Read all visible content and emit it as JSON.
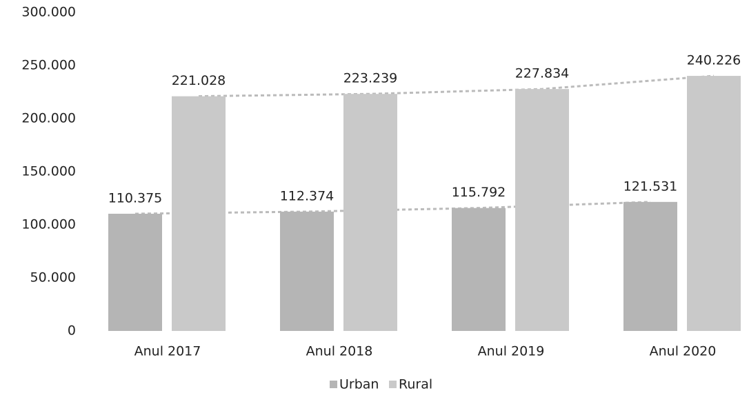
{
  "chart_data": {
    "type": "bar",
    "categories": [
      "Anul 2017",
      "Anul 2018",
      "Anul 2019",
      "Anul 2020"
    ],
    "series": [
      {
        "name": "Urban",
        "color": "#b5b5b5",
        "values": [
          110375,
          112374,
          115792,
          121531
        ],
        "value_labels": [
          "110.375",
          "112.374",
          "115.792",
          "121.531"
        ]
      },
      {
        "name": "Rural",
        "color": "#c9c9c9",
        "values": [
          221028,
          223239,
          227834,
          240226
        ],
        "value_labels": [
          "221.028",
          "223.239",
          "227.834",
          "240.226"
        ]
      }
    ],
    "ylim": [
      0,
      300000
    ],
    "yticks": [
      0,
      {
        "value": 50000,
        "label": "50.000"
      },
      {
        "value": 100000,
        "label": "100.000"
      },
      {
        "value": 150000,
        "label": "150.000"
      },
      {
        "value": 200000,
        "label": "200.000"
      },
      {
        "value": 250000,
        "label": "250.000"
      },
      {
        "value": 300000,
        "label": "300.000"
      }
    ],
    "legend": "bottom"
  }
}
